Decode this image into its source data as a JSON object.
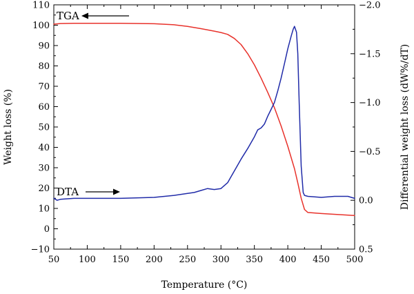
{
  "chart_data": {
    "type": "line",
    "title": "",
    "xlabel": "Temperature (°C)",
    "ylabel": "Weight loss (%)",
    "y2label": "Differential weight loss (dW%/dT)",
    "xlim": [
      50,
      500
    ],
    "ylim": [
      -10,
      110
    ],
    "y2lim": [
      0.5,
      -2.0
    ],
    "y2_inverted": true,
    "xticks": [
      "50",
      "100",
      "150",
      "200",
      "250",
      "300",
      "350",
      "400",
      "450",
      "500"
    ],
    "yticks": [
      "-10",
      "0",
      "10",
      "20",
      "30",
      "40",
      "50",
      "60",
      "70",
      "80",
      "90",
      "100",
      "110"
    ],
    "y2ticks": [
      "0.5",
      "0.0",
      "-0.5",
      "-1.0",
      "-1.5",
      "-2.0"
    ],
    "grid": false,
    "series": [
      {
        "name": "TGA",
        "axis": "left",
        "color": "#e8312a",
        "x": [
          50,
          60,
          80,
          100,
          150,
          200,
          230,
          250,
          270,
          290,
          300,
          310,
          320,
          330,
          340,
          350,
          360,
          370,
          380,
          390,
          400,
          410,
          415,
          420,
          425,
          430,
          450,
          500
        ],
        "y": [
          100.5,
          100.8,
          100.9,
          100.9,
          100.9,
          100.7,
          100.2,
          99.4,
          98.3,
          97.1,
          96.4,
          95.5,
          93.5,
          90.5,
          86.0,
          80.5,
          74.0,
          67.0,
          59.5,
          50.5,
          40.5,
          29.5,
          22.5,
          15.0,
          9.5,
          8.0,
          7.5,
          6.5
        ]
      },
      {
        "name": "DTA",
        "axis": "right",
        "color": "#1f2aa8",
        "x": [
          50,
          55,
          60,
          80,
          100,
          150,
          200,
          230,
          250,
          260,
          270,
          280,
          290,
          300,
          310,
          320,
          330,
          340,
          350,
          355,
          360,
          365,
          370,
          375,
          380,
          385,
          390,
          395,
          400,
          405,
          408,
          410,
          413,
          415,
          417,
          420,
          423,
          425,
          430,
          450,
          470,
          490,
          495,
          500
        ],
        "y": [
          -0.02,
          0.0,
          -0.01,
          -0.02,
          -0.02,
          -0.02,
          -0.03,
          -0.05,
          -0.07,
          -0.08,
          -0.1,
          -0.12,
          -0.11,
          -0.12,
          -0.18,
          -0.3,
          -0.42,
          -0.53,
          -0.65,
          -0.72,
          -0.74,
          -0.78,
          -0.86,
          -0.93,
          -1.0,
          -1.12,
          -1.25,
          -1.4,
          -1.55,
          -1.68,
          -1.75,
          -1.78,
          -1.72,
          -1.5,
          -1.0,
          -0.35,
          -0.08,
          -0.05,
          -0.04,
          -0.03,
          -0.04,
          -0.04,
          -0.03,
          -0.02
        ]
      }
    ],
    "annotations": [
      {
        "text": "TGA",
        "arrow": "left",
        "x": 55,
        "y": 104
      },
      {
        "text": "DTA",
        "arrow": "right",
        "x": 55,
        "y": 18
      }
    ]
  }
}
